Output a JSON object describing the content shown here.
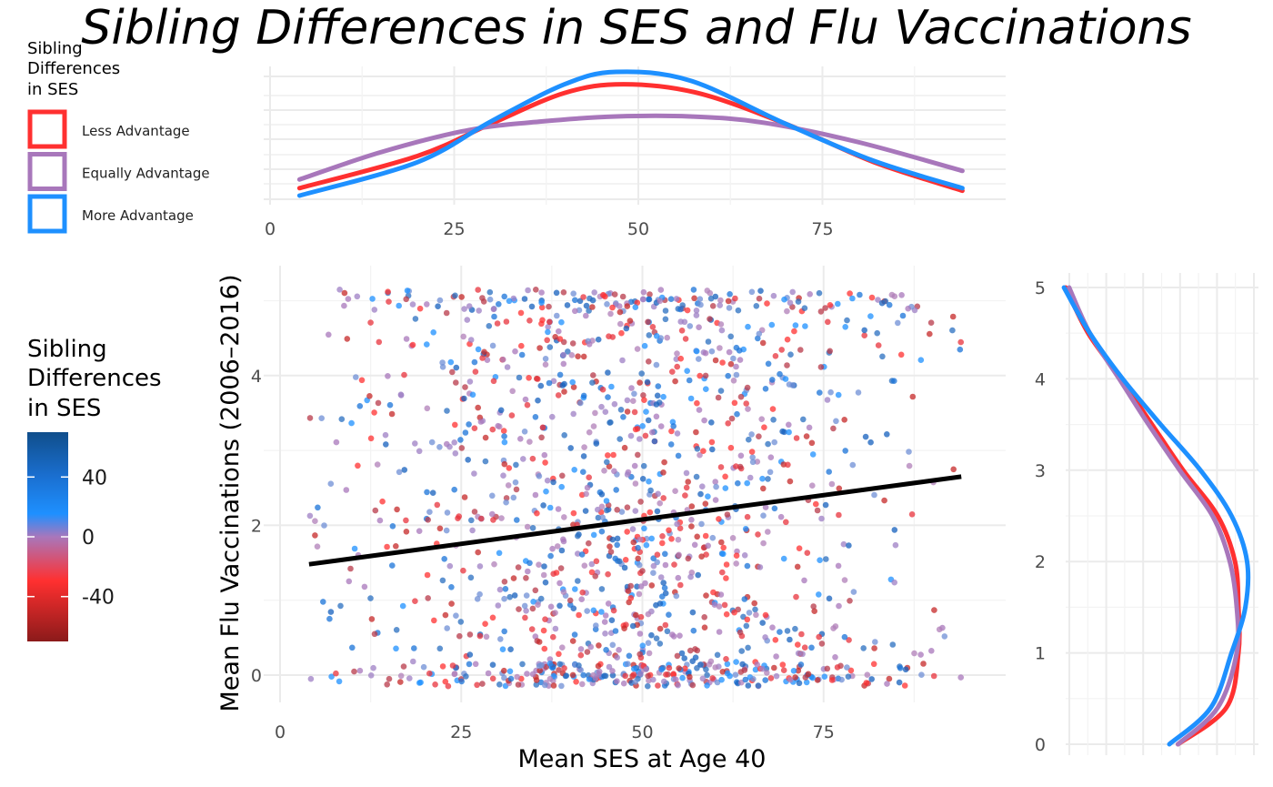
{
  "chart_data": [
    {
      "type": "scatter",
      "title": "Sibling Differences in SES and Flu Vaccinations",
      "xlabel": "Mean SES at Age 40",
      "ylabel": "Mean Flu Vaccinations (2006–2016)",
      "xlim": [
        -1,
        96
      ],
      "ylim": [
        -0.35,
        5.35
      ],
      "x_ticks": [
        "0",
        "25",
        "50",
        "75"
      ],
      "y_ticks": [
        "0",
        "2",
        "4"
      ],
      "grid": true,
      "n_points_approx": 1500,
      "x_range": [
        4,
        94
      ],
      "y_range": [
        -0.15,
        5.2
      ],
      "color_variable": "Sibling Differences in SES",
      "trend_line": {
        "x": [
          4,
          94
        ],
        "y": [
          1.48,
          2.65
        ]
      }
    },
    {
      "type": "line",
      "subtype": "density",
      "variable": "Mean SES at Age 40",
      "xlim": [
        -1,
        100
      ],
      "x_ticks": [
        "0",
        "25",
        "50",
        "75"
      ],
      "legend_title": "Sibling Differences in SES",
      "legend_position": "top-left",
      "series": [
        {
          "name": "Less Advantage",
          "color": "#ff3030",
          "x": [
            4,
            20,
            30,
            40,
            48,
            58,
            70,
            82,
            94
          ],
          "y": [
            0.06,
            0.32,
            0.58,
            0.83,
            0.9,
            0.83,
            0.58,
            0.27,
            0.04
          ]
        },
        {
          "name": "Equally Advantage",
          "color": "#a877bb",
          "x": [
            4,
            15,
            27,
            37,
            47,
            57,
            67,
            80,
            94
          ],
          "y": [
            0.13,
            0.35,
            0.53,
            0.6,
            0.64,
            0.64,
            0.59,
            0.43,
            0.2
          ]
        },
        {
          "name": "More Advantage",
          "color": "#1e90ff",
          "x": [
            4,
            20,
            30,
            40,
            47,
            57,
            70,
            82,
            94
          ],
          "y": [
            0.0,
            0.27,
            0.6,
            0.9,
            1.0,
            0.93,
            0.58,
            0.28,
            0.06
          ]
        }
      ]
    },
    {
      "type": "line",
      "subtype": "density",
      "variable": "Mean Flu Vaccinations (2006–2016)",
      "ylim": [
        -0.02,
        5.15
      ],
      "y_ticks": [
        "0",
        "1",
        "2",
        "3",
        "4",
        "5"
      ],
      "series": [
        {
          "name": "Less Advantage",
          "color": "#ff3030",
          "y": [
            0,
            0.4,
            1,
            1.5,
            2,
            2.5,
            3,
            3.5,
            4,
            4.5,
            5
          ],
          "density": [
            0.65,
            0.93,
            1.0,
            1.0,
            0.98,
            0.88,
            0.68,
            0.5,
            0.32,
            0.13,
            0.0
          ]
        },
        {
          "name": "Equally Advantage",
          "color": "#a877bb",
          "y": [
            0,
            0.4,
            1,
            1.5,
            2,
            2.5,
            3,
            3.5,
            4,
            4.5,
            5
          ],
          "density": [
            0.65,
            0.88,
            0.99,
            0.99,
            0.95,
            0.85,
            0.66,
            0.48,
            0.31,
            0.14,
            0.02
          ]
        },
        {
          "name": "More Advantage",
          "color": "#1e90ff",
          "y": [
            0,
            0.4,
            1,
            1.5,
            2,
            2.5,
            3,
            3.5,
            4,
            4.5,
            5
          ],
          "density": [
            0.6,
            0.84,
            0.96,
            1.04,
            1.05,
            0.96,
            0.78,
            0.55,
            0.33,
            0.14,
            -0.01
          ]
        }
      ]
    },
    {
      "type": "heatmap",
      "subtype": "colorbar",
      "legend_title": "Sibling Differences in SES",
      "range": [
        -70,
        70
      ],
      "tick_values": [
        40,
        0,
        -40
      ],
      "tick_labels": [
        "40",
        "0",
        "-40"
      ],
      "colors": {
        "-70": "#8b1a1a",
        "-40": "#ff3030",
        "0": "#a877bb",
        "15": "#1e90ff",
        "70": "#104e8b"
      }
    }
  ]
}
